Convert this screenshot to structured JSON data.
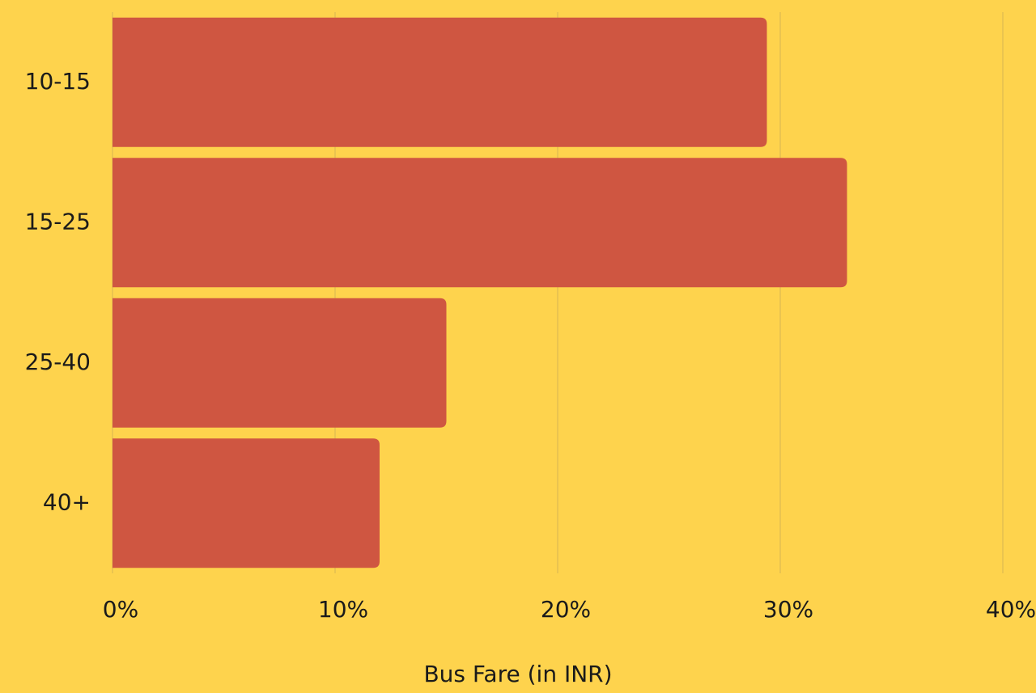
{
  "chart_data": {
    "type": "barh",
    "categories": [
      "10-15",
      "15-25",
      "25-40",
      "40+"
    ],
    "values": [
      29.4,
      33.0,
      15.0,
      12.0
    ],
    "color": "#cf5641",
    "xlabel": "Bus Fare (in INR)",
    "xlim": [
      0,
      40
    ],
    "xticks": [
      {
        "value": 0,
        "label": "0%"
      },
      {
        "value": 10,
        "label": "10%"
      },
      {
        "value": 20,
        "label": "20%"
      },
      {
        "value": 30,
        "label": "30%"
      },
      {
        "value": 40,
        "label": "40%"
      }
    ],
    "grid": true
  }
}
